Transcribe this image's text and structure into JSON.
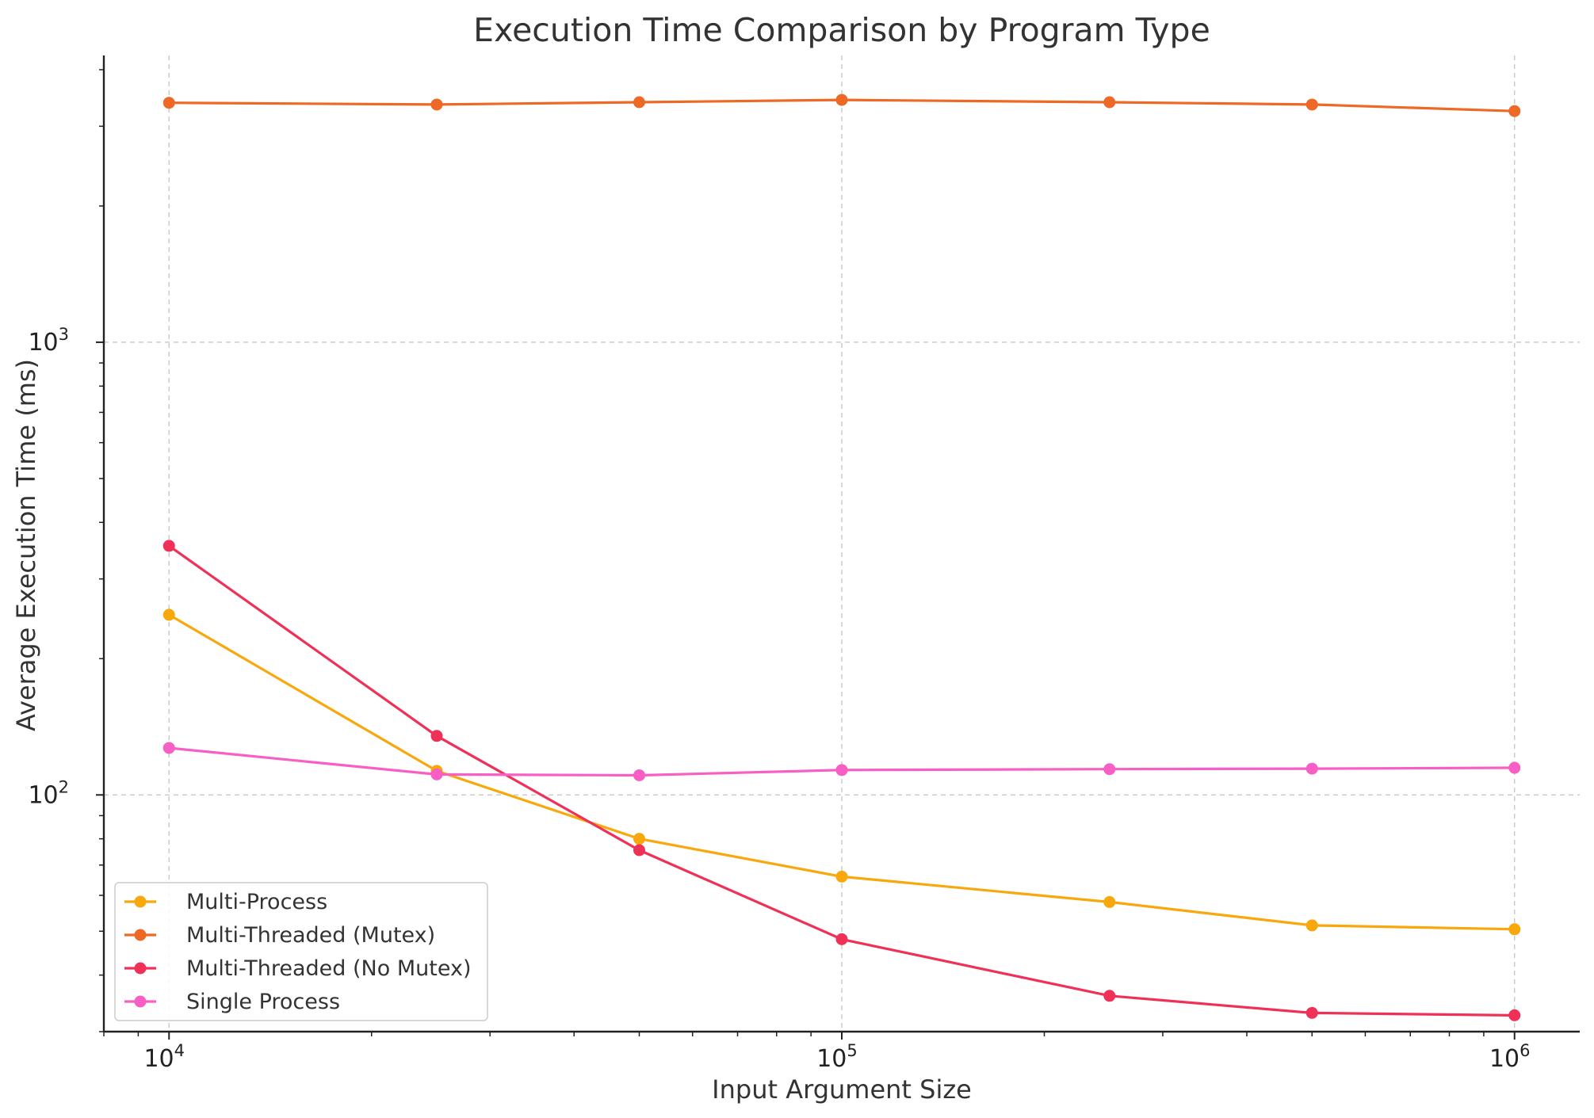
{
  "chart_data": {
    "type": "line",
    "title": "Execution Time Comparison by Program Type",
    "xlabel": "Input Argument Size",
    "ylabel": "Average Execution Time (ms)",
    "xscale": "log",
    "yscale": "log",
    "xlim": [
      8000,
      1250000
    ],
    "ylim": [
      30,
      4300
    ],
    "grid": true,
    "legend_position": "bottom-left",
    "x": [
      10000,
      25000,
      50000,
      100000,
      250000,
      500000,
      1000000
    ],
    "x_ticks": [
      {
        "value": 10000,
        "base": "10",
        "exp": "4"
      },
      {
        "value": 100000,
        "base": "10",
        "exp": "5"
      },
      {
        "value": 1000000,
        "base": "10",
        "exp": "6"
      }
    ],
    "y_ticks": [
      {
        "value": 100,
        "base": "10",
        "exp": "2"
      },
      {
        "value": 1000,
        "base": "10",
        "exp": "3"
      }
    ],
    "series": [
      {
        "name": "Multi-Process",
        "color": "#f8a80c",
        "values": [
          250,
          113,
          80,
          66,
          58,
          51.5,
          50.5
        ]
      },
      {
        "name": "Multi-Threaded (Mutex)",
        "color": "#ed6925",
        "values": [
          3380,
          3350,
          3390,
          3430,
          3390,
          3350,
          3240
        ]
      },
      {
        "name": "Multi-Threaded (No Mutex)",
        "color": "#ef3158",
        "values": [
          355,
          135,
          75.5,
          48,
          36,
          33,
          32.6
        ]
      },
      {
        "name": "Single Process",
        "color": "#f75fc5",
        "values": [
          127,
          111,
          110.5,
          113.5,
          114,
          114.3,
          114.8
        ]
      }
    ]
  }
}
